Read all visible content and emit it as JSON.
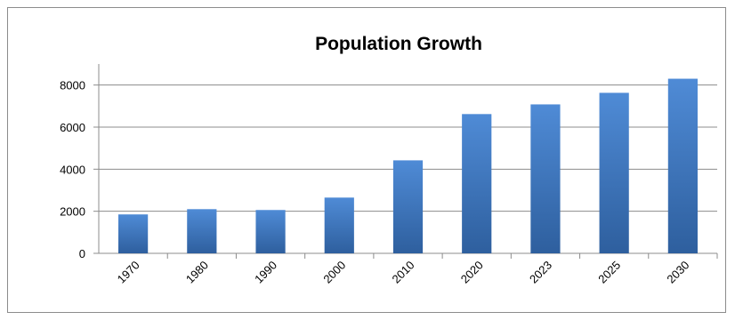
{
  "chart_data": {
    "type": "bar",
    "title": "Population Growth",
    "xlabel": "",
    "ylabel": "",
    "categories": [
      "1970",
      "1980",
      "1990",
      "2000",
      "2010",
      "2020",
      "2023",
      "2025",
      "2030"
    ],
    "values": [
      1850,
      2100,
      2060,
      2650,
      4420,
      6620,
      7080,
      7630,
      8300
    ],
    "ylim": [
      0,
      9000
    ],
    "yticks": [
      "0",
      "2000",
      "4000",
      "6000",
      "8000"
    ],
    "ytick_values": [
      0,
      2000,
      4000,
      6000,
      8000
    ],
    "grid": true,
    "legend": "none",
    "colors": {
      "bar_light": "#4f8bd6",
      "bar_dark": "#2e5f9e",
      "grid": "#8c8c8c",
      "axis": "#8c8c8c"
    }
  }
}
